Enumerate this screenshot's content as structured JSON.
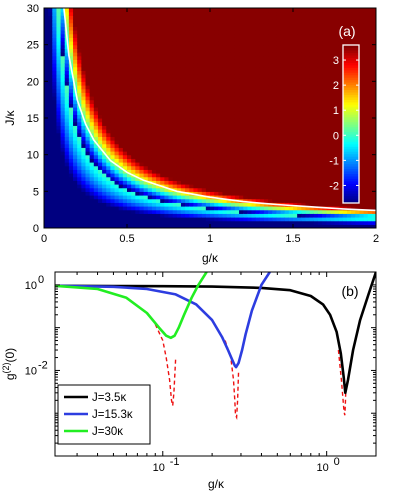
{
  "chart_data": [
    {
      "panel_label": "(a)",
      "type": "heatmap",
      "xlabel": "g/κ",
      "ylabel": "J/κ",
      "xlim": [
        0,
        2
      ],
      "ylim": [
        0,
        30
      ],
      "xticks": [
        "0",
        "0.5",
        "1",
        "1.5",
        "2"
      ],
      "yticks": [
        "0",
        "5",
        "10",
        "15",
        "20",
        "25",
        "30"
      ],
      "colorbar": {
        "range": [
          -2.7,
          3.6
        ],
        "ticks": [
          "-2",
          "-1",
          "0",
          "1",
          "2",
          "3"
        ],
        "colormap": "jet",
        "position": "top-right"
      },
      "min_curve": {
        "color": "#ffffff",
        "g": [
          0.12,
          0.15,
          0.2,
          0.25,
          0.3,
          0.4,
          0.5,
          0.6,
          0.8,
          1.0,
          1.2,
          1.4,
          1.6,
          1.8,
          2.0
        ],
        "J": [
          30,
          23.5,
          17.5,
          14.2,
          12.0,
          9.2,
          7.6,
          6.5,
          5.0,
          4.2,
          3.6,
          3.2,
          2.9,
          2.6,
          2.4
        ]
      },
      "grid": false
    },
    {
      "panel_label": "(b)",
      "type": "line",
      "xlabel": "g/κ",
      "ylabel": "g(2)(0)",
      "xscale": "log",
      "yscale": "log",
      "xlim": [
        0.022,
        2
      ],
      "ylim": [
        0.0001,
        2
      ],
      "xticks": [
        "10",
        "10"
      ],
      "xtick_exponents": [
        "-1",
        "0"
      ],
      "yticks": [
        "10",
        "10"
      ],
      "ytick_exponents": [
        "0",
        "-2"
      ],
      "legend_position": "bottom-left",
      "series": [
        {
          "name": "J=3.5κ",
          "color": "#000000",
          "x": [
            0.022,
            0.05,
            0.1,
            0.2,
            0.4,
            0.6,
            0.8,
            0.95,
            1.05,
            1.15,
            1.22,
            1.27,
            1.3,
            1.35,
            1.45,
            1.6,
            1.8,
            2.0
          ],
          "y": [
            0.95,
            0.94,
            0.93,
            0.91,
            0.85,
            0.75,
            0.55,
            0.35,
            0.2,
            0.08,
            0.025,
            0.007,
            0.003,
            0.006,
            0.03,
            0.15,
            0.6,
            2.0
          ]
        },
        {
          "name": "J=15.3κ",
          "color": "#2d3de0",
          "x": [
            0.022,
            0.05,
            0.08,
            0.12,
            0.16,
            0.2,
            0.23,
            0.25,
            0.265,
            0.275,
            0.28,
            0.29,
            0.305,
            0.32,
            0.35,
            0.4,
            0.45
          ],
          "y": [
            0.95,
            0.9,
            0.8,
            0.6,
            0.35,
            0.15,
            0.06,
            0.03,
            0.018,
            0.013,
            0.012,
            0.015,
            0.03,
            0.07,
            0.25,
            1.0,
            2.0
          ]
        },
        {
          "name": "J=30κ",
          "color": "#22ee22",
          "x": [
            0.022,
            0.04,
            0.06,
            0.08,
            0.095,
            0.105,
            0.112,
            0.118,
            0.125,
            0.135,
            0.15,
            0.165,
            0.185
          ],
          "y": [
            0.95,
            0.8,
            0.5,
            0.22,
            0.1,
            0.065,
            0.058,
            0.065,
            0.1,
            0.2,
            0.5,
            1.0,
            2.0
          ]
        }
      ],
      "dashed_series": {
        "color": "#ee1111",
        "branches": [
          {
            "x": [
              0.09,
              0.1,
              0.105,
              0.11,
              0.113,
              0.115,
              0.117,
              0.12
            ],
            "y": [
              0.12,
              0.05,
              0.02,
              0.006,
              0.002,
              0.0015,
              0.003,
              0.02
            ]
          },
          {
            "x": [
              0.24,
              0.26,
              0.27,
              0.275,
              0.278,
              0.282,
              0.286,
              0.29
            ],
            "y": [
              0.05,
              0.02,
              0.006,
              0.002,
              0.0009,
              0.0008,
              0.002,
              0.01
            ]
          },
          {
            "x": [
              1.18,
              1.23,
              1.26,
              1.275,
              1.29,
              1.3,
              1.31
            ],
            "y": [
              0.03,
              0.006,
              0.002,
              0.0011,
              0.0009,
              0.0015,
              0.004
            ]
          }
        ]
      },
      "grid": false
    }
  ]
}
